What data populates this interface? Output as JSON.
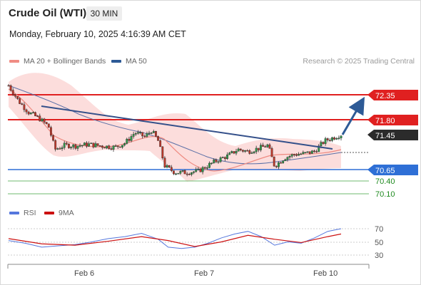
{
  "header": {
    "instrument": "Crude Oil (WTI)",
    "timeframe": "30 MIN",
    "timestamp": "Monday, February 10, 2025 4:16:39 AM CET"
  },
  "legend": {
    "items": [
      {
        "label": "MA 20 + Bollinger Bands",
        "color": "#f08c84"
      },
      {
        "label": "MA 50",
        "color": "#2d5a96"
      }
    ],
    "credit": "Research © 2025 Trading Central"
  },
  "price_levels": [
    {
      "label": "72.35",
      "style": "resistance",
      "color": "#e02020"
    },
    {
      "label": "71.80",
      "style": "resistance",
      "color": "#e02020"
    },
    {
      "label": "71.45",
      "style": "current",
      "color": "#2b2b2b"
    },
    {
      "label": "70.65",
      "style": "support",
      "color": "#2e6fd6"
    },
    {
      "label": "70.40",
      "style": "target",
      "color": "#1f8a1f"
    },
    {
      "label": "70.10",
      "style": "target",
      "color": "#1f8a1f"
    }
  ],
  "rsi_panel": {
    "legend": [
      {
        "label": "RSI",
        "color": "#5577dd"
      },
      {
        "label": "9MA",
        "color": "#cc1111"
      }
    ],
    "levels": [
      "70",
      "50",
      "30"
    ]
  },
  "x_axis": {
    "labels": [
      "Feb 6",
      "Feb 7",
      "Feb 10"
    ]
  },
  "chart_data": {
    "type": "candlestick",
    "title": "Crude Oil (WTI)",
    "interval": "30 MIN",
    "price_range": [
      69.9,
      72.6
    ],
    "resistance_levels": [
      72.35,
      71.8
    ],
    "current_price": 71.45,
    "support_levels": [
      70.65,
      70.4,
      70.1
    ],
    "close_path": [
      {
        "x": 0.0,
        "y": 72.62
      },
      {
        "x": 0.03,
        "y": 72.25
      },
      {
        "x": 0.06,
        "y": 71.98
      },
      {
        "x": 0.09,
        "y": 71.85
      },
      {
        "x": 0.12,
        "y": 71.65
      },
      {
        "x": 0.14,
        "y": 71.1
      },
      {
        "x": 0.17,
        "y": 71.2
      },
      {
        "x": 0.2,
        "y": 71.18
      },
      {
        "x": 0.24,
        "y": 71.22
      },
      {
        "x": 0.28,
        "y": 71.18
      },
      {
        "x": 0.32,
        "y": 71.15
      },
      {
        "x": 0.35,
        "y": 71.25
      },
      {
        "x": 0.38,
        "y": 71.5
      },
      {
        "x": 0.41,
        "y": 71.4
      },
      {
        "x": 0.43,
        "y": 71.55
      },
      {
        "x": 0.45,
        "y": 71.3
      },
      {
        "x": 0.47,
        "y": 70.7
      },
      {
        "x": 0.5,
        "y": 70.55
      },
      {
        "x": 0.53,
        "y": 70.55
      },
      {
        "x": 0.57,
        "y": 70.58
      },
      {
        "x": 0.6,
        "y": 70.72
      },
      {
        "x": 0.63,
        "y": 70.85
      },
      {
        "x": 0.66,
        "y": 70.95
      },
      {
        "x": 0.69,
        "y": 71.1
      },
      {
        "x": 0.72,
        "y": 71.05
      },
      {
        "x": 0.75,
        "y": 71.12
      },
      {
        "x": 0.78,
        "y": 71.2
      },
      {
        "x": 0.8,
        "y": 70.7
      },
      {
        "x": 0.83,
        "y": 70.9
      },
      {
        "x": 0.86,
        "y": 70.98
      },
      {
        "x": 0.89,
        "y": 71.0
      },
      {
        "x": 0.92,
        "y": 71.05
      },
      {
        "x": 0.95,
        "y": 71.3
      },
      {
        "x": 1.0,
        "y": 71.45
      }
    ],
    "ma50_path": [
      {
        "x": 0.0,
        "y": 72.45
      },
      {
        "x": 0.1,
        "y": 72.1
      },
      {
        "x": 0.2,
        "y": 71.75
      },
      {
        "x": 0.3,
        "y": 71.5
      },
      {
        "x": 0.4,
        "y": 71.3
      },
      {
        "x": 0.5,
        "y": 71.12
      },
      {
        "x": 0.6,
        "y": 70.95
      },
      {
        "x": 0.7,
        "y": 70.9
      },
      {
        "x": 0.8,
        "y": 70.95
      },
      {
        "x": 0.9,
        "y": 71.0
      },
      {
        "x": 1.0,
        "y": 71.12
      }
    ],
    "trendline": {
      "from": {
        "x": 0.11,
        "y": 71.95
      },
      "to": {
        "x": 0.97,
        "y": 71.15
      }
    },
    "forecast_arrow": {
      "from": 71.45,
      "to": 72.35
    },
    "rsi_path": [
      {
        "x": 0.0,
        "y": 52
      },
      {
        "x": 0.05,
        "y": 48
      },
      {
        "x": 0.1,
        "y": 42
      },
      {
        "x": 0.15,
        "y": 44
      },
      {
        "x": 0.2,
        "y": 46
      },
      {
        "x": 0.25,
        "y": 50
      },
      {
        "x": 0.3,
        "y": 55
      },
      {
        "x": 0.35,
        "y": 58
      },
      {
        "x": 0.4,
        "y": 63
      },
      {
        "x": 0.45,
        "y": 54
      },
      {
        "x": 0.48,
        "y": 42
      },
      {
        "x": 0.52,
        "y": 40
      },
      {
        "x": 0.56,
        "y": 42
      },
      {
        "x": 0.6,
        "y": 48
      },
      {
        "x": 0.64,
        "y": 56
      },
      {
        "x": 0.68,
        "y": 62
      },
      {
        "x": 0.72,
        "y": 66
      },
      {
        "x": 0.76,
        "y": 58
      },
      {
        "x": 0.8,
        "y": 45
      },
      {
        "x": 0.84,
        "y": 50
      },
      {
        "x": 0.88,
        "y": 48
      },
      {
        "x": 0.92,
        "y": 56
      },
      {
        "x": 0.96,
        "y": 66
      },
      {
        "x": 1.0,
        "y": 70
      }
    ],
    "rsi_ma9_path": [
      {
        "x": 0.0,
        "y": 55
      },
      {
        "x": 0.1,
        "y": 47
      },
      {
        "x": 0.2,
        "y": 45
      },
      {
        "x": 0.3,
        "y": 51
      },
      {
        "x": 0.4,
        "y": 58
      },
      {
        "x": 0.48,
        "y": 52
      },
      {
        "x": 0.56,
        "y": 43
      },
      {
        "x": 0.64,
        "y": 50
      },
      {
        "x": 0.72,
        "y": 60
      },
      {
        "x": 0.8,
        "y": 54
      },
      {
        "x": 0.88,
        "y": 49
      },
      {
        "x": 0.96,
        "y": 58
      },
      {
        "x": 1.0,
        "y": 62
      }
    ]
  }
}
